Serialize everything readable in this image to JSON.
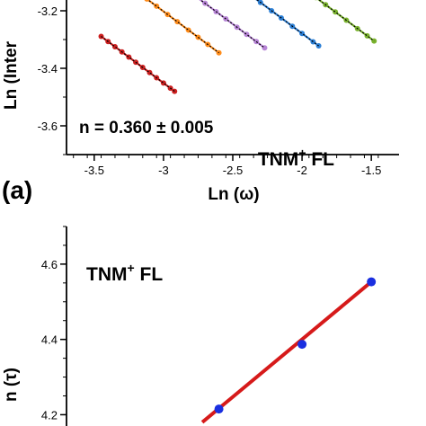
{
  "panel_a_label": "(a)",
  "chart_data": [
    {
      "type": "scatter",
      "title": "",
      "xlabel": "Ln (ω)",
      "ylabel": "Ln (Intensity)",
      "ylabel_visible": "Ln (Inter",
      "xlim": [
        -3.7,
        -1.3
      ],
      "ylim": [
        -3.7,
        -3.1
      ],
      "x_ticks": [
        -3.5,
        -3,
        -2.5,
        -2,
        -1.5
      ],
      "x_tick_labels": [
        "-3.5",
        "-3",
        "-2.5",
        "-2",
        "-1.5"
      ],
      "y_ticks": [
        -3.2,
        -3.4,
        -3.6
      ],
      "y_tick_labels": [
        "-3.2",
        "-3.4",
        "-3.6"
      ],
      "annotations": [
        "n = 0.360 ± 0.005",
        "TNM+ FL"
      ],
      "annotation_main": "n = 0.360 ± 0.005",
      "annotation_sample": "TNM",
      "annotation_sup": "+",
      "annotation_suffix": " FL",
      "fit_style": "dotted black line",
      "series": [
        {
          "color": "#cc1f1f",
          "x": [
            -3.45,
            -3.4,
            -3.35,
            -3.3,
            -3.25,
            -3.2,
            -3.15,
            -3.1,
            -3.05,
            -3.0,
            -2.95,
            -2.92
          ],
          "y": [
            -3.289,
            -3.307,
            -3.325,
            -3.343,
            -3.361,
            -3.379,
            -3.397,
            -3.415,
            -3.433,
            -3.451,
            -3.469,
            -3.48
          ]
        },
        {
          "color": "#ff8c1a",
          "x": [
            -3.27,
            -3.2,
            -3.12,
            -3.05,
            -2.97,
            -2.9,
            -2.82,
            -2.75,
            -2.68,
            -2.6
          ],
          "y": [
            -3.105,
            -3.13,
            -3.159,
            -3.184,
            -3.213,
            -3.238,
            -3.267,
            -3.292,
            -3.317,
            -3.346
          ]
        },
        {
          "color": "#b784d6",
          "x": [
            -2.85,
            -2.78,
            -2.7,
            -2.62,
            -2.55,
            -2.47,
            -2.4,
            -2.33,
            -2.27
          ],
          "y": [
            -3.12,
            -3.145,
            -3.174,
            -3.203,
            -3.228,
            -3.257,
            -3.282,
            -3.307,
            -3.329
          ]
        },
        {
          "color": "#2b7fd6",
          "x": [
            -2.45,
            -2.38,
            -2.3,
            -2.22,
            -2.15,
            -2.07,
            -2.0,
            -1.92,
            -1.88
          ],
          "y": [
            -3.117,
            -3.142,
            -3.171,
            -3.2,
            -3.225,
            -3.254,
            -3.279,
            -3.308,
            -3.322
          ]
        },
        {
          "color": "#7ab32e",
          "x": [
            -1.98,
            -1.9,
            -1.83,
            -1.76,
            -1.68,
            -1.6,
            -1.53,
            -1.48
          ],
          "y": [
            -3.125,
            -3.154,
            -3.179,
            -3.204,
            -3.233,
            -3.262,
            -3.287,
            -3.305
          ]
        }
      ]
    },
    {
      "type": "scatter",
      "title": "",
      "xlabel": "",
      "ylabel": "Ln (τ)",
      "ylabel_visible": "n (τ)",
      "xlim": [
        -3.7,
        -1.3
      ],
      "ylim": [
        4.17,
        4.7
      ],
      "y_ticks": [
        4.2,
        4.4,
        4.6
      ],
      "y_tick_labels": [
        "4.2",
        "4.4",
        "4.6"
      ],
      "annotation_sample": "TNM",
      "annotation_sup": "+",
      "annotation_suffix": " FL",
      "point_color": "#1a2fe0",
      "fit_color": "#d61a1a",
      "x": [
        -2.6,
        -2.0,
        -1.5
      ],
      "y": [
        4.215,
        4.387,
        4.553
      ],
      "fit_x": [
        -2.72,
        -1.5
      ],
      "fit_y": [
        4.18,
        4.553
      ]
    }
  ]
}
